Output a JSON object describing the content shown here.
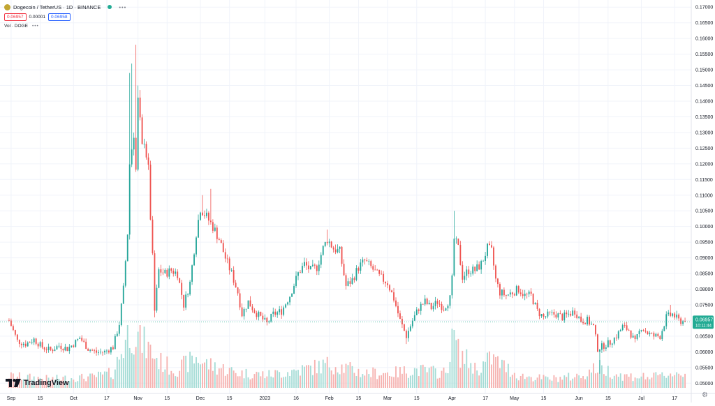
{
  "header": {
    "title": "Dogecoin / TetherUS · 1D · BINANCE",
    "sell_price": "0.06957",
    "spread": "0.00001",
    "buy_price": "0.06958",
    "volume_label": "Vol · DOGE",
    "more": "•••"
  },
  "brand": {
    "name": "TradingView"
  },
  "price_label": {
    "value": "0.06957",
    "countdown": "10:11:44"
  },
  "colors": {
    "up": "#26a69a",
    "down": "#ef5350",
    "up_vol": "#a5dcd6",
    "down_vol": "#f6b2b0",
    "label_bg": "#22ab94",
    "grid": "#f0f3fa"
  },
  "chart_data": {
    "type": "candlestick",
    "title": "Dogecoin / TetherUS · 1D · BINANCE",
    "ylim": [
      0.0485,
      0.1705
    ],
    "y_ticks": [
      "0.17000",
      "0.16500",
      "0.16000",
      "0.15500",
      "0.15000",
      "0.14500",
      "0.14000",
      "0.13500",
      "0.13000",
      "0.12500",
      "0.12000",
      "0.11500",
      "0.11000",
      "0.10500",
      "0.10000",
      "0.09500",
      "0.09000",
      "0.08500",
      "0.08000",
      "0.07500",
      "0.07000",
      "0.06500",
      "0.06000",
      "0.05500",
      "0.05000"
    ],
    "x_ticks": [
      {
        "label": "Sep",
        "day": 1
      },
      {
        "label": "15",
        "day": 15
      },
      {
        "label": "Oct",
        "day": 31
      },
      {
        "label": "17",
        "day": 47
      },
      {
        "label": "Nov",
        "day": 62
      },
      {
        "label": "15",
        "day": 76
      },
      {
        "label": "Dec",
        "day": 92
      },
      {
        "label": "15",
        "day": 106
      },
      {
        "label": "2023",
        "day": 123
      },
      {
        "label": "16",
        "day": 138
      },
      {
        "label": "Feb",
        "day": 154
      },
      {
        "label": "15",
        "day": 168
      },
      {
        "label": "Mar",
        "day": 182
      },
      {
        "label": "15",
        "day": 196
      },
      {
        "label": "Apr",
        "day": 213
      },
      {
        "label": "17",
        "day": 229
      },
      {
        "label": "May",
        "day": 243
      },
      {
        "label": "15",
        "day": 257
      },
      {
        "label": "Jun",
        "day": 274
      },
      {
        "label": "15",
        "day": 288
      },
      {
        "label": "Jul",
        "day": 304
      },
      {
        "label": "17",
        "day": 320
      }
    ],
    "day_range": [
      -3,
      328
    ],
    "last_price": 0.06957,
    "close_anchors": [
      [
        0,
        0.07
      ],
      [
        4,
        0.0635
      ],
      [
        8,
        0.0625
      ],
      [
        12,
        0.064
      ],
      [
        16,
        0.0615
      ],
      [
        20,
        0.0605
      ],
      [
        24,
        0.062
      ],
      [
        28,
        0.061
      ],
      [
        31,
        0.0625
      ],
      [
        34,
        0.0645
      ],
      [
        38,
        0.061
      ],
      [
        42,
        0.0598
      ],
      [
        46,
        0.06
      ],
      [
        50,
        0.0615
      ],
      [
        53,
        0.069
      ],
      [
        55,
        0.08
      ],
      [
        57,
        0.098
      ],
      [
        58,
        0.12
      ],
      [
        60,
        0.13
      ],
      [
        61,
        0.118
      ],
      [
        62,
        0.14
      ],
      [
        63,
        0.133
      ],
      [
        64,
        0.125
      ],
      [
        65,
        0.128
      ],
      [
        67,
        0.118
      ],
      [
        68,
        0.103
      ],
      [
        69,
        0.09
      ],
      [
        70,
        0.073
      ],
      [
        72,
        0.086
      ],
      [
        75,
        0.085
      ],
      [
        78,
        0.086
      ],
      [
        81,
        0.085
      ],
      [
        84,
        0.075
      ],
      [
        87,
        0.082
      ],
      [
        90,
        0.098
      ],
      [
        92,
        0.106
      ],
      [
        95,
        0.103
      ],
      [
        98,
        0.1
      ],
      [
        101,
        0.096
      ],
      [
        104,
        0.09
      ],
      [
        107,
        0.085
      ],
      [
        110,
        0.079
      ],
      [
        112,
        0.072
      ],
      [
        115,
        0.076
      ],
      [
        118,
        0.073
      ],
      [
        121,
        0.071
      ],
      [
        124,
        0.069
      ],
      [
        127,
        0.072
      ],
      [
        131,
        0.073
      ],
      [
        135,
        0.078
      ],
      [
        139,
        0.085
      ],
      [
        142,
        0.088
      ],
      [
        145,
        0.086
      ],
      [
        148,
        0.087
      ],
      [
        151,
        0.093
      ],
      [
        153,
        0.096
      ],
      [
        156,
        0.093
      ],
      [
        159,
        0.092
      ],
      [
        162,
        0.081
      ],
      [
        165,
        0.083
      ],
      [
        168,
        0.087
      ],
      [
        171,
        0.089
      ],
      [
        174,
        0.087
      ],
      [
        178,
        0.084
      ],
      [
        182,
        0.082
      ],
      [
        185,
        0.077
      ],
      [
        188,
        0.07
      ],
      [
        191,
        0.065
      ],
      [
        194,
        0.07
      ],
      [
        197,
        0.074
      ],
      [
        200,
        0.076
      ],
      [
        203,
        0.074
      ],
      [
        206,
        0.076
      ],
      [
        209,
        0.074
      ],
      [
        212,
        0.077
      ],
      [
        213,
        0.083
      ],
      [
        214,
        0.096
      ],
      [
        216,
        0.093
      ],
      [
        218,
        0.084
      ],
      [
        221,
        0.086
      ],
      [
        224,
        0.086
      ],
      [
        227,
        0.088
      ],
      [
        230,
        0.093
      ],
      [
        232,
        0.092
      ],
      [
        234,
        0.083
      ],
      [
        236,
        0.079
      ],
      [
        239,
        0.078
      ],
      [
        242,
        0.079
      ],
      [
        245,
        0.08
      ],
      [
        248,
        0.078
      ],
      [
        251,
        0.078
      ],
      [
        254,
        0.073
      ],
      [
        257,
        0.071
      ],
      [
        260,
        0.072
      ],
      [
        263,
        0.072
      ],
      [
        266,
        0.071
      ],
      [
        269,
        0.072
      ],
      [
        272,
        0.073
      ],
      [
        275,
        0.07
      ],
      [
        278,
        0.07
      ],
      [
        281,
        0.068
      ],
      [
        283,
        0.061
      ],
      [
        286,
        0.062
      ],
      [
        289,
        0.063
      ],
      [
        292,
        0.065
      ],
      [
        295,
        0.068
      ],
      [
        298,
        0.067
      ],
      [
        301,
        0.063
      ],
      [
        304,
        0.068
      ],
      [
        307,
        0.066
      ],
      [
        310,
        0.065
      ],
      [
        313,
        0.065
      ],
      [
        316,
        0.071
      ],
      [
        319,
        0.072
      ],
      [
        322,
        0.07
      ],
      [
        325,
        0.0696
      ]
    ],
    "spikes": [
      {
        "day": 58,
        "high": 0.149
      },
      {
        "day": 59,
        "high": 0.152
      },
      {
        "day": 61,
        "high": 0.158
      },
      {
        "day": 62,
        "high": 0.145
      },
      {
        "day": 70,
        "low": 0.071
      },
      {
        "day": 93,
        "high": 0.11
      },
      {
        "day": 97,
        "high": 0.112
      },
      {
        "day": 153,
        "high": 0.099
      },
      {
        "day": 191,
        "low": 0.0625
      },
      {
        "day": 214,
        "high": 0.105
      },
      {
        "day": 232,
        "high": 0.095
      },
      {
        "day": 284,
        "low": 0.053
      },
      {
        "day": 318,
        "high": 0.075
      }
    ],
    "volume_anchors": [
      [
        0,
        0.2
      ],
      [
        20,
        0.15
      ],
      [
        40,
        0.18
      ],
      [
        50,
        0.25
      ],
      [
        55,
        0.7
      ],
      [
        58,
        1.0
      ],
      [
        62,
        0.85
      ],
      [
        66,
        0.7
      ],
      [
        72,
        0.45
      ],
      [
        80,
        0.3
      ],
      [
        90,
        0.5
      ],
      [
        95,
        0.4
      ],
      [
        110,
        0.25
      ],
      [
        125,
        0.22
      ],
      [
        140,
        0.3
      ],
      [
        155,
        0.4
      ],
      [
        170,
        0.25
      ],
      [
        185,
        0.25
      ],
      [
        195,
        0.3
      ],
      [
        210,
        0.25
      ],
      [
        214,
        0.9
      ],
      [
        216,
        0.6
      ],
      [
        225,
        0.3
      ],
      [
        232,
        0.5
      ],
      [
        245,
        0.2
      ],
      [
        260,
        0.15
      ],
      [
        275,
        0.2
      ],
      [
        283,
        0.35
      ],
      [
        295,
        0.2
      ],
      [
        310,
        0.18
      ],
      [
        320,
        0.25
      ],
      [
        325,
        0.22
      ]
    ]
  }
}
